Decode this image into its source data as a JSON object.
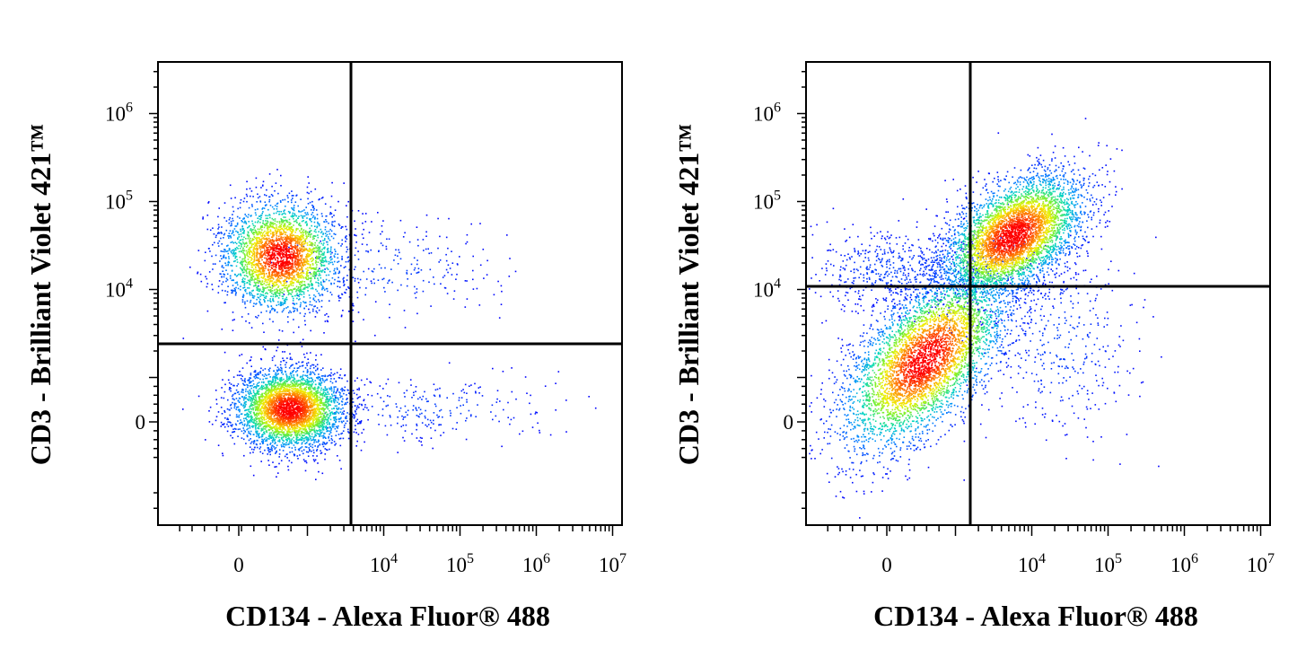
{
  "chart_data": [
    {
      "type": "scatter",
      "subtype": "flow-cytometry-density-dot-plot",
      "xlabel": "CD134 - Alexa Fluor® 488",
      "ylabel": "CD3 - Brilliant Violet 421™",
      "x_scale": "biexponential",
      "y_scale": "biexponential",
      "x_ticks": [
        {
          "value": 0,
          "label": "0"
        },
        {
          "value": 10000,
          "base": "10",
          "exp": "4"
        },
        {
          "value": 100000,
          "base": "10",
          "exp": "5"
        },
        {
          "value": 1000000,
          "base": "10",
          "exp": "6"
        },
        {
          "value": 10000000,
          "base": "10",
          "exp": "7"
        }
      ],
      "y_ticks": [
        {
          "value": 0,
          "label": "0"
        },
        {
          "value": 10000,
          "base": "10",
          "exp": "4"
        },
        {
          "value": 100000,
          "base": "10",
          "exp": "5"
        },
        {
          "value": 1000000,
          "base": "10",
          "exp": "6"
        }
      ],
      "quadrant_gate": {
        "x": 3000,
        "y": 2000
      },
      "color_scale": [
        "#0000ff",
        "#00aaff",
        "#00e0a0",
        "#a0ff00",
        "#ffff00",
        "#ff8000",
        "#ff0000"
      ],
      "populations": [
        {
          "center_x": 700,
          "center_y": 25000,
          "events": 3500
        },
        {
          "center_x": 900,
          "center_y": 0,
          "events": 4500
        }
      ]
    },
    {
      "type": "scatter",
      "subtype": "flow-cytometry-density-dot-plot",
      "xlabel": "CD134 - Alexa Fluor® 488",
      "ylabel": "CD3 - Brilliant Violet 421™",
      "x_scale": "biexponential",
      "y_scale": "biexponential",
      "x_ticks": [
        {
          "value": 0,
          "label": "0"
        },
        {
          "value": 10000,
          "base": "10",
          "exp": "4"
        },
        {
          "value": 100000,
          "base": "10",
          "exp": "5"
        },
        {
          "value": 1000000,
          "base": "10",
          "exp": "6"
        },
        {
          "value": 10000000,
          "base": "10",
          "exp": "7"
        }
      ],
      "y_ticks": [
        {
          "value": 0,
          "label": "0"
        },
        {
          "value": 10000,
          "base": "10",
          "exp": "4"
        },
        {
          "value": 100000,
          "base": "10",
          "exp": "5"
        },
        {
          "value": 1000000,
          "base": "10",
          "exp": "6"
        }
      ],
      "quadrant_gate": {
        "x": 3000,
        "y": 11000
      },
      "color_scale": [
        "#0000ff",
        "#00aaff",
        "#00e0a0",
        "#a0ff00",
        "#ffff00",
        "#ff8000",
        "#ff0000"
      ],
      "populations": [
        {
          "center_x": 12000,
          "center_y": 35000,
          "events": 6000
        },
        {
          "center_x": 800,
          "center_y": 1000,
          "events": 6000
        }
      ]
    }
  ]
}
